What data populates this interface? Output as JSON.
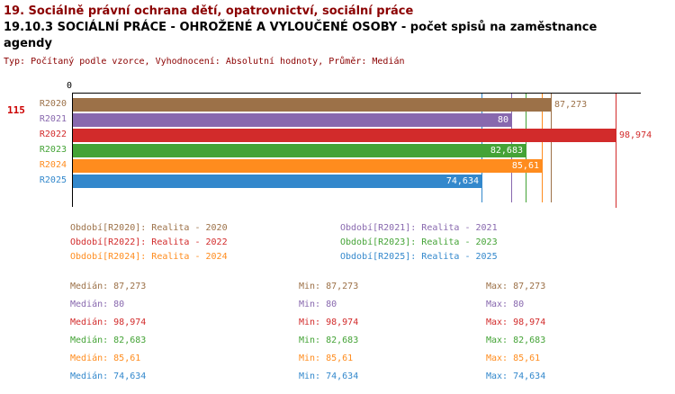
{
  "header": {
    "line1": "19. Sociálně právní ochrana dětí, opatrovnictví, sociální práce",
    "line2": "19.10.3 SOCIÁLNÍ PRÁCE - OHROŽENÉ A VYLOUČENÉ OSOBY - počet spisů na zaměstnance",
    "line3": "agendy",
    "meta": "Typ: Počítaný podle vzorce, Vyhodnocení: Absolutní hodnoty, Průměr: Medián"
  },
  "chart_data": {
    "type": "bar",
    "orientation": "horizontal",
    "title": "19.10.3 SOCIÁLNÍ PRÁCE - OHROŽENÉ A VYLOUČENÉ OSOBY - počet spisů na zaměstnance agendy",
    "x_origin_label": "0",
    "row_marker_label": "115",
    "xlim": [
      0,
      103
    ],
    "grid": false,
    "legend_position": "bottom",
    "categories": [
      "R2020",
      "R2021",
      "R2022",
      "R2023",
      "R2024",
      "R2025"
    ],
    "values": [
      87.273,
      80,
      98.974,
      82.683,
      85.61,
      74.634
    ],
    "value_labels": [
      "87,273",
      "80",
      "98,974",
      "82,683",
      "85,61",
      "74,634"
    ],
    "label_positions": [
      "outside",
      "inside",
      "outside",
      "inside",
      "inside",
      "inside"
    ],
    "colors": [
      "#9C7148",
      "#8868AE",
      "#D22B2B",
      "#44A336",
      "#FF8C1E",
      "#3388CC"
    ],
    "series_names": [
      "Realita - 2020",
      "Realita - 2021",
      "Realita - 2022",
      "Realita - 2023",
      "Realita - 2024",
      "Realita - 2025"
    ],
    "median": [
      87.273,
      80,
      98.974,
      82.683,
      85.61,
      74.634
    ],
    "min": [
      87.273,
      80,
      98.974,
      82.683,
      85.61,
      74.634
    ],
    "max": [
      87.273,
      80,
      98.974,
      82.683,
      85.61,
      74.634
    ]
  },
  "legend": {
    "items": [
      {
        "label": "Období[R2020]: Realita - 2020",
        "color": "#9C7148"
      },
      {
        "label": "Období[R2021]: Realita - 2021",
        "color": "#8868AE"
      },
      {
        "label": "Období[R2022]: Realita - 2022",
        "color": "#D22B2B"
      },
      {
        "label": "Období[R2023]: Realita - 2023",
        "color": "#44A336"
      },
      {
        "label": "Období[R2024]: Realita - 2024",
        "color": "#FF8C1E"
      },
      {
        "label": "Období[R2025]: Realita - 2025",
        "color": "#3388CC"
      }
    ]
  },
  "stats": {
    "rows": [
      {
        "median": "Medián: 87,273",
        "min": "Min: 87,273",
        "max": "Max: 87,273",
        "color": "#9C7148"
      },
      {
        "median": "Medián: 80",
        "min": "Min: 80",
        "max": "Max: 80",
        "color": "#8868AE"
      },
      {
        "median": "Medián: 98,974",
        "min": "Min: 98,974",
        "max": "Max: 98,974",
        "color": "#D22B2B"
      },
      {
        "median": "Medián: 82,683",
        "min": "Min: 82,683",
        "max": "Max: 82,683",
        "color": "#44A336"
      },
      {
        "median": "Medián: 85,61",
        "min": "Min: 85,61",
        "max": "Max: 85,61",
        "color": "#FF8C1E"
      },
      {
        "median": "Medián: 74,634",
        "min": "Min: 74,634",
        "max": "Max: 74,634",
        "color": "#3388CC"
      }
    ]
  }
}
